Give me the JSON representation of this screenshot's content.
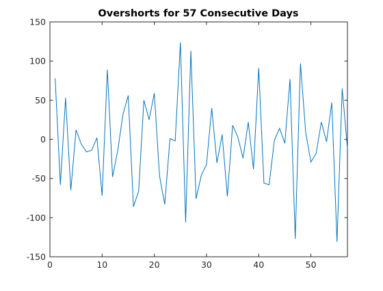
{
  "chart_data": {
    "type": "line",
    "title": "Overshorts for 57 Consecutive Days",
    "xlabel": "",
    "ylabel": "",
    "xlim": [
      0,
      57
    ],
    "ylim": [
      -150,
      150
    ],
    "grid": false,
    "xticks": [
      0,
      10,
      20,
      30,
      40,
      50
    ],
    "yticks": [
      150,
      100,
      50,
      0,
      -50,
      -100,
      -150
    ],
    "series": [
      {
        "color": "#0072BD",
        "x": [
          1,
          2,
          3,
          4,
          5,
          6,
          7,
          8,
          9,
          10,
          11,
          12,
          13,
          14,
          15,
          16,
          17,
          18,
          19,
          20,
          21,
          22,
          23,
          24,
          25,
          26,
          27,
          28,
          29,
          30,
          31,
          32,
          33,
          34,
          35,
          36,
          37,
          38,
          39,
          40,
          41,
          42,
          43,
          44,
          45,
          46,
          47,
          48,
          49,
          50,
          51,
          52,
          53,
          54,
          55,
          56,
          57
        ],
        "values": [
          78,
          -58,
          53,
          -65,
          12,
          -6,
          -16,
          -14,
          2,
          -72,
          89,
          -48,
          -14,
          32,
          56,
          -86,
          -66,
          50,
          25,
          59,
          -47,
          -83,
          1,
          -2,
          124,
          -106,
          113,
          -76,
          -46,
          -32,
          40,
          -30,
          6,
          -73,
          18,
          3,
          -24,
          22,
          -38,
          91,
          -56,
          -58,
          -1,
          14,
          -5,
          77,
          -127,
          97,
          9,
          -29,
          -18,
          22,
          -3,
          47,
          -131,
          65,
          -12
        ]
      }
    ]
  }
}
